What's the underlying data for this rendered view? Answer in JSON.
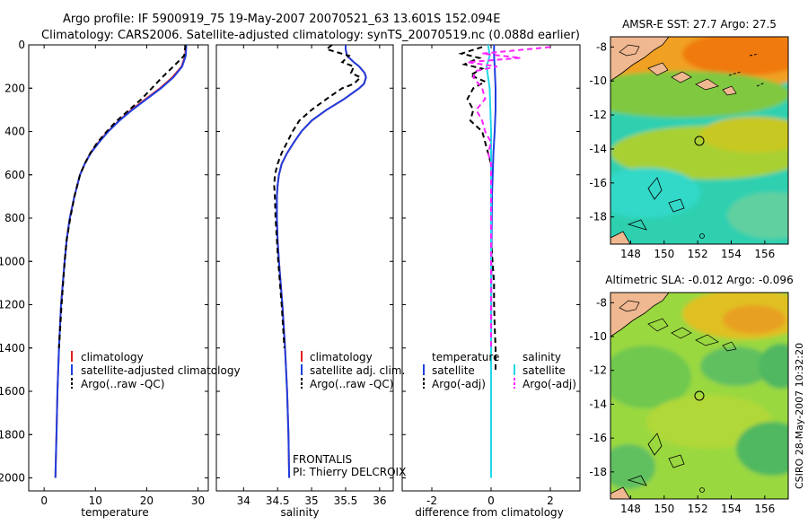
{
  "title": {
    "line1": "Argo profile: IF 5900919_75 19-May-2007 20070521_63 13.601S 152.094E",
    "line2": "Climatology: CARS2006. Satellite-adjusted climatology: synTS_20070519.nc (0.088d earlier)"
  },
  "credit": "CSIRO 28-May-2007 10:32:20",
  "annotations": {
    "frontalis": "FRONTALIS",
    "pi": "PI: Thierry DELCROIX"
  },
  "colors": {
    "climatology": "#e02020",
    "satellite": "#1f3fe0",
    "argo": "#000000",
    "sal_satellite": "#22d8e8",
    "sal_argo": "#ff22ff",
    "land": "#f0b890",
    "coast": "#000000"
  },
  "legends": {
    "temperature": [
      "climatology",
      "satellite-adjusted climatology",
      "Argo(..raw -QC)"
    ],
    "salinity": [
      "climatology",
      "satellite adj. clim.",
      "Argo(..raw -QC)"
    ],
    "diff_temperature": {
      "header": "temperature",
      "items": [
        "satellite",
        "Argo(-adj)"
      ]
    },
    "diff_salinity": {
      "header": "salinity",
      "items": [
        "satellite",
        "Argo(-adj)"
      ]
    }
  },
  "chart_data": [
    {
      "type": "line",
      "name": "temperature-profile",
      "xlabel": "temperature",
      "ylabel": "",
      "xlim": [
        -3,
        32
      ],
      "ylim": [
        0,
        2060
      ],
      "y_reversed": true,
      "xticks": [
        0,
        10,
        20,
        30
      ],
      "yticks": [
        0,
        200,
        400,
        600,
        800,
        1000,
        1200,
        1400,
        1600,
        1800,
        2000
      ],
      "depth": [
        0,
        10,
        50,
        100,
        150,
        200,
        250,
        300,
        350,
        400,
        450,
        500,
        550,
        600,
        700,
        800,
        900,
        1000,
        1200,
        1400,
        1600,
        1800,
        2000
      ],
      "series": [
        {
          "name": "climatology",
          "color": "#e02020",
          "dash": "",
          "values": [
            27.6,
            27.6,
            27.5,
            26.8,
            25.0,
            22.6,
            19.8,
            17.0,
            14.6,
            12.4,
            10.6,
            9.0,
            7.9,
            7.0,
            5.9,
            5.0,
            4.4,
            4.0,
            3.3,
            2.9,
            2.6,
            2.4,
            2.2
          ]
        },
        {
          "name": "satellite-adjusted climatology",
          "color": "#1f3fe0",
          "dash": "",
          "values": [
            27.7,
            27.7,
            27.6,
            26.9,
            25.2,
            22.8,
            20.0,
            17.2,
            14.7,
            12.5,
            10.7,
            9.1,
            7.9,
            7.0,
            5.9,
            5.0,
            4.4,
            4.0,
            3.3,
            2.9,
            2.6,
            2.4,
            2.2
          ]
        },
        {
          "name": "Argo(..raw -QC)",
          "color": "#000000",
          "dash": "6,4",
          "values": [
            27.5,
            27.5,
            27.3,
            25.2,
            23.0,
            21.0,
            19.0,
            16.6,
            14.2,
            12.2,
            10.4,
            9.0,
            7.9,
            7.0,
            5.9,
            5.1,
            4.4,
            4.0,
            3.4,
            2.9
          ]
        }
      ]
    },
    {
      "type": "line",
      "name": "salinity-profile",
      "xlabel": "salinity",
      "xlim": [
        33.6,
        36.2
      ],
      "ylim": [
        0,
        2060
      ],
      "y_reversed": true,
      "xticks": [
        34,
        34.5,
        35,
        35.5,
        36
      ],
      "xticklabels": [
        "34",
        "34.5",
        "35",
        "35.5",
        "36"
      ],
      "depth": [
        0,
        20,
        50,
        80,
        100,
        130,
        150,
        180,
        200,
        250,
        300,
        350,
        400,
        450,
        500,
        550,
        600,
        650,
        700,
        800,
        900,
        1000,
        1200,
        1400,
        1600,
        1800,
        2000
      ],
      "series": [
        {
          "name": "climatology",
          "color": "#e02020",
          "dash": "",
          "values": [
            35.5,
            35.5,
            35.52,
            35.62,
            35.7,
            35.78,
            35.8,
            35.77,
            35.7,
            35.48,
            35.22,
            35.0,
            34.85,
            34.74,
            34.64,
            34.56,
            34.52,
            34.5,
            34.49,
            34.49,
            34.5,
            34.52,
            34.57,
            34.61,
            34.64,
            34.66,
            34.67
          ]
        },
        {
          "name": "satellite adj. clim.",
          "color": "#1f3fe0",
          "dash": "",
          "values": [
            35.5,
            35.5,
            35.52,
            35.62,
            35.7,
            35.78,
            35.8,
            35.77,
            35.7,
            35.48,
            35.22,
            35.0,
            34.85,
            34.74,
            34.64,
            34.56,
            34.52,
            34.5,
            34.49,
            34.49,
            34.5,
            34.52,
            34.57,
            34.61,
            34.64,
            34.66,
            34.67
          ]
        },
        {
          "name": "Argo(..raw -QC)",
          "color": "#000000",
          "dash": "6,4",
          "values": [
            35.3,
            35.22,
            35.55,
            35.45,
            35.62,
            35.58,
            35.72,
            35.62,
            35.45,
            35.22,
            35.0,
            34.82,
            34.72,
            34.64,
            34.56,
            34.5,
            34.46,
            34.45,
            34.46,
            34.47,
            34.49,
            34.51,
            34.56,
            34.6
          ]
        }
      ]
    },
    {
      "type": "line",
      "name": "difference-profile",
      "xlabel": "difference from climatology",
      "xlim": [
        -3,
        3
      ],
      "ylim": [
        0,
        2060
      ],
      "y_reversed": true,
      "xticks": [
        -2,
        0,
        2
      ],
      "series": [
        {
          "name": "temperature satellite",
          "color": "#1f3fe0",
          "dash": "",
          "depth": [
            0,
            50,
            100,
            200,
            300,
            400,
            500,
            700,
            1000,
            1500,
            2000
          ],
          "values": [
            0.1,
            0.1,
            0.12,
            0.15,
            0.15,
            0.12,
            0.08,
            0.03,
            0.01,
            0.0,
            0.0
          ]
        },
        {
          "name": "temperature Argo(-adj)",
          "color": "#000000",
          "dash": "6,4",
          "depth": [
            10,
            40,
            60,
            90,
            110,
            140,
            170,
            200,
            250,
            300,
            350,
            400,
            450,
            500,
            550,
            600,
            650,
            700,
            800,
            900,
            1000,
            1100,
            1200,
            1300,
            1400,
            1500
          ],
          "values": [
            -0.3,
            -1.0,
            -0.4,
            -0.9,
            -0.3,
            -0.7,
            -0.2,
            -0.6,
            -0.8,
            -0.6,
            -0.7,
            -0.3,
            -0.2,
            -0.1,
            0.0,
            0.0,
            0.0,
            0.0,
            0.0,
            0.0,
            0.05,
            0.1,
            0.1,
            0.12,
            0.15,
            0.15
          ]
        },
        {
          "name": "salinity satellite",
          "color": "#22d8e8",
          "dash": "",
          "depth": [
            0,
            50,
            100,
            200,
            400,
            700,
            1000,
            2000
          ],
          "values": [
            -0.1,
            -0.05,
            -0.15,
            -0.05,
            0.0,
            0.0,
            0.0,
            0.0
          ]
        },
        {
          "name": "salinity Argo(-adj)",
          "color": "#ff22ff",
          "dash": "6,4",
          "depth": [
            10,
            30,
            40,
            60,
            80,
            100,
            120,
            150,
            200,
            250,
            300,
            350,
            400,
            450,
            500,
            550,
            600,
            650,
            700,
            800,
            900,
            1000,
            1100,
            1200,
            1300,
            1400
          ],
          "values": [
            2.0,
            0.5,
            -0.3,
            1.0,
            -0.8,
            0.2,
            -0.5,
            -0.6,
            -0.3,
            -0.2,
            -0.5,
            -0.3,
            -0.2,
            0.0,
            -0.1,
            0.0,
            0.0,
            0.0,
            0.0,
            0.0,
            0.0,
            0.0,
            0.0,
            0.0,
            0.0,
            0.0
          ]
        }
      ]
    },
    {
      "type": "heatmap",
      "name": "sst-map",
      "title": "AMSR-E SST: 27.7 Argo: 27.5",
      "xlim": [
        146.8,
        157.4
      ],
      "ylim": [
        -19.6,
        -7.4
      ],
      "xticks": [
        148,
        150,
        152,
        154,
        156
      ],
      "yticks": [
        -8,
        -10,
        -12,
        -14,
        -16,
        -18
      ],
      "argo_position": [
        152.094,
        -13.601
      ]
    },
    {
      "type": "heatmap",
      "name": "sla-map",
      "title": "Altimetric SLA: -0.012 Argo: -0.096",
      "xlim": [
        146.8,
        157.4
      ],
      "ylim": [
        -19.6,
        -7.4
      ],
      "xticks": [
        148,
        150,
        152,
        154,
        156
      ],
      "yticks": [
        -8,
        -10,
        -12,
        -14,
        -16,
        -18
      ],
      "argo_position": [
        152.094,
        -13.601
      ]
    }
  ]
}
